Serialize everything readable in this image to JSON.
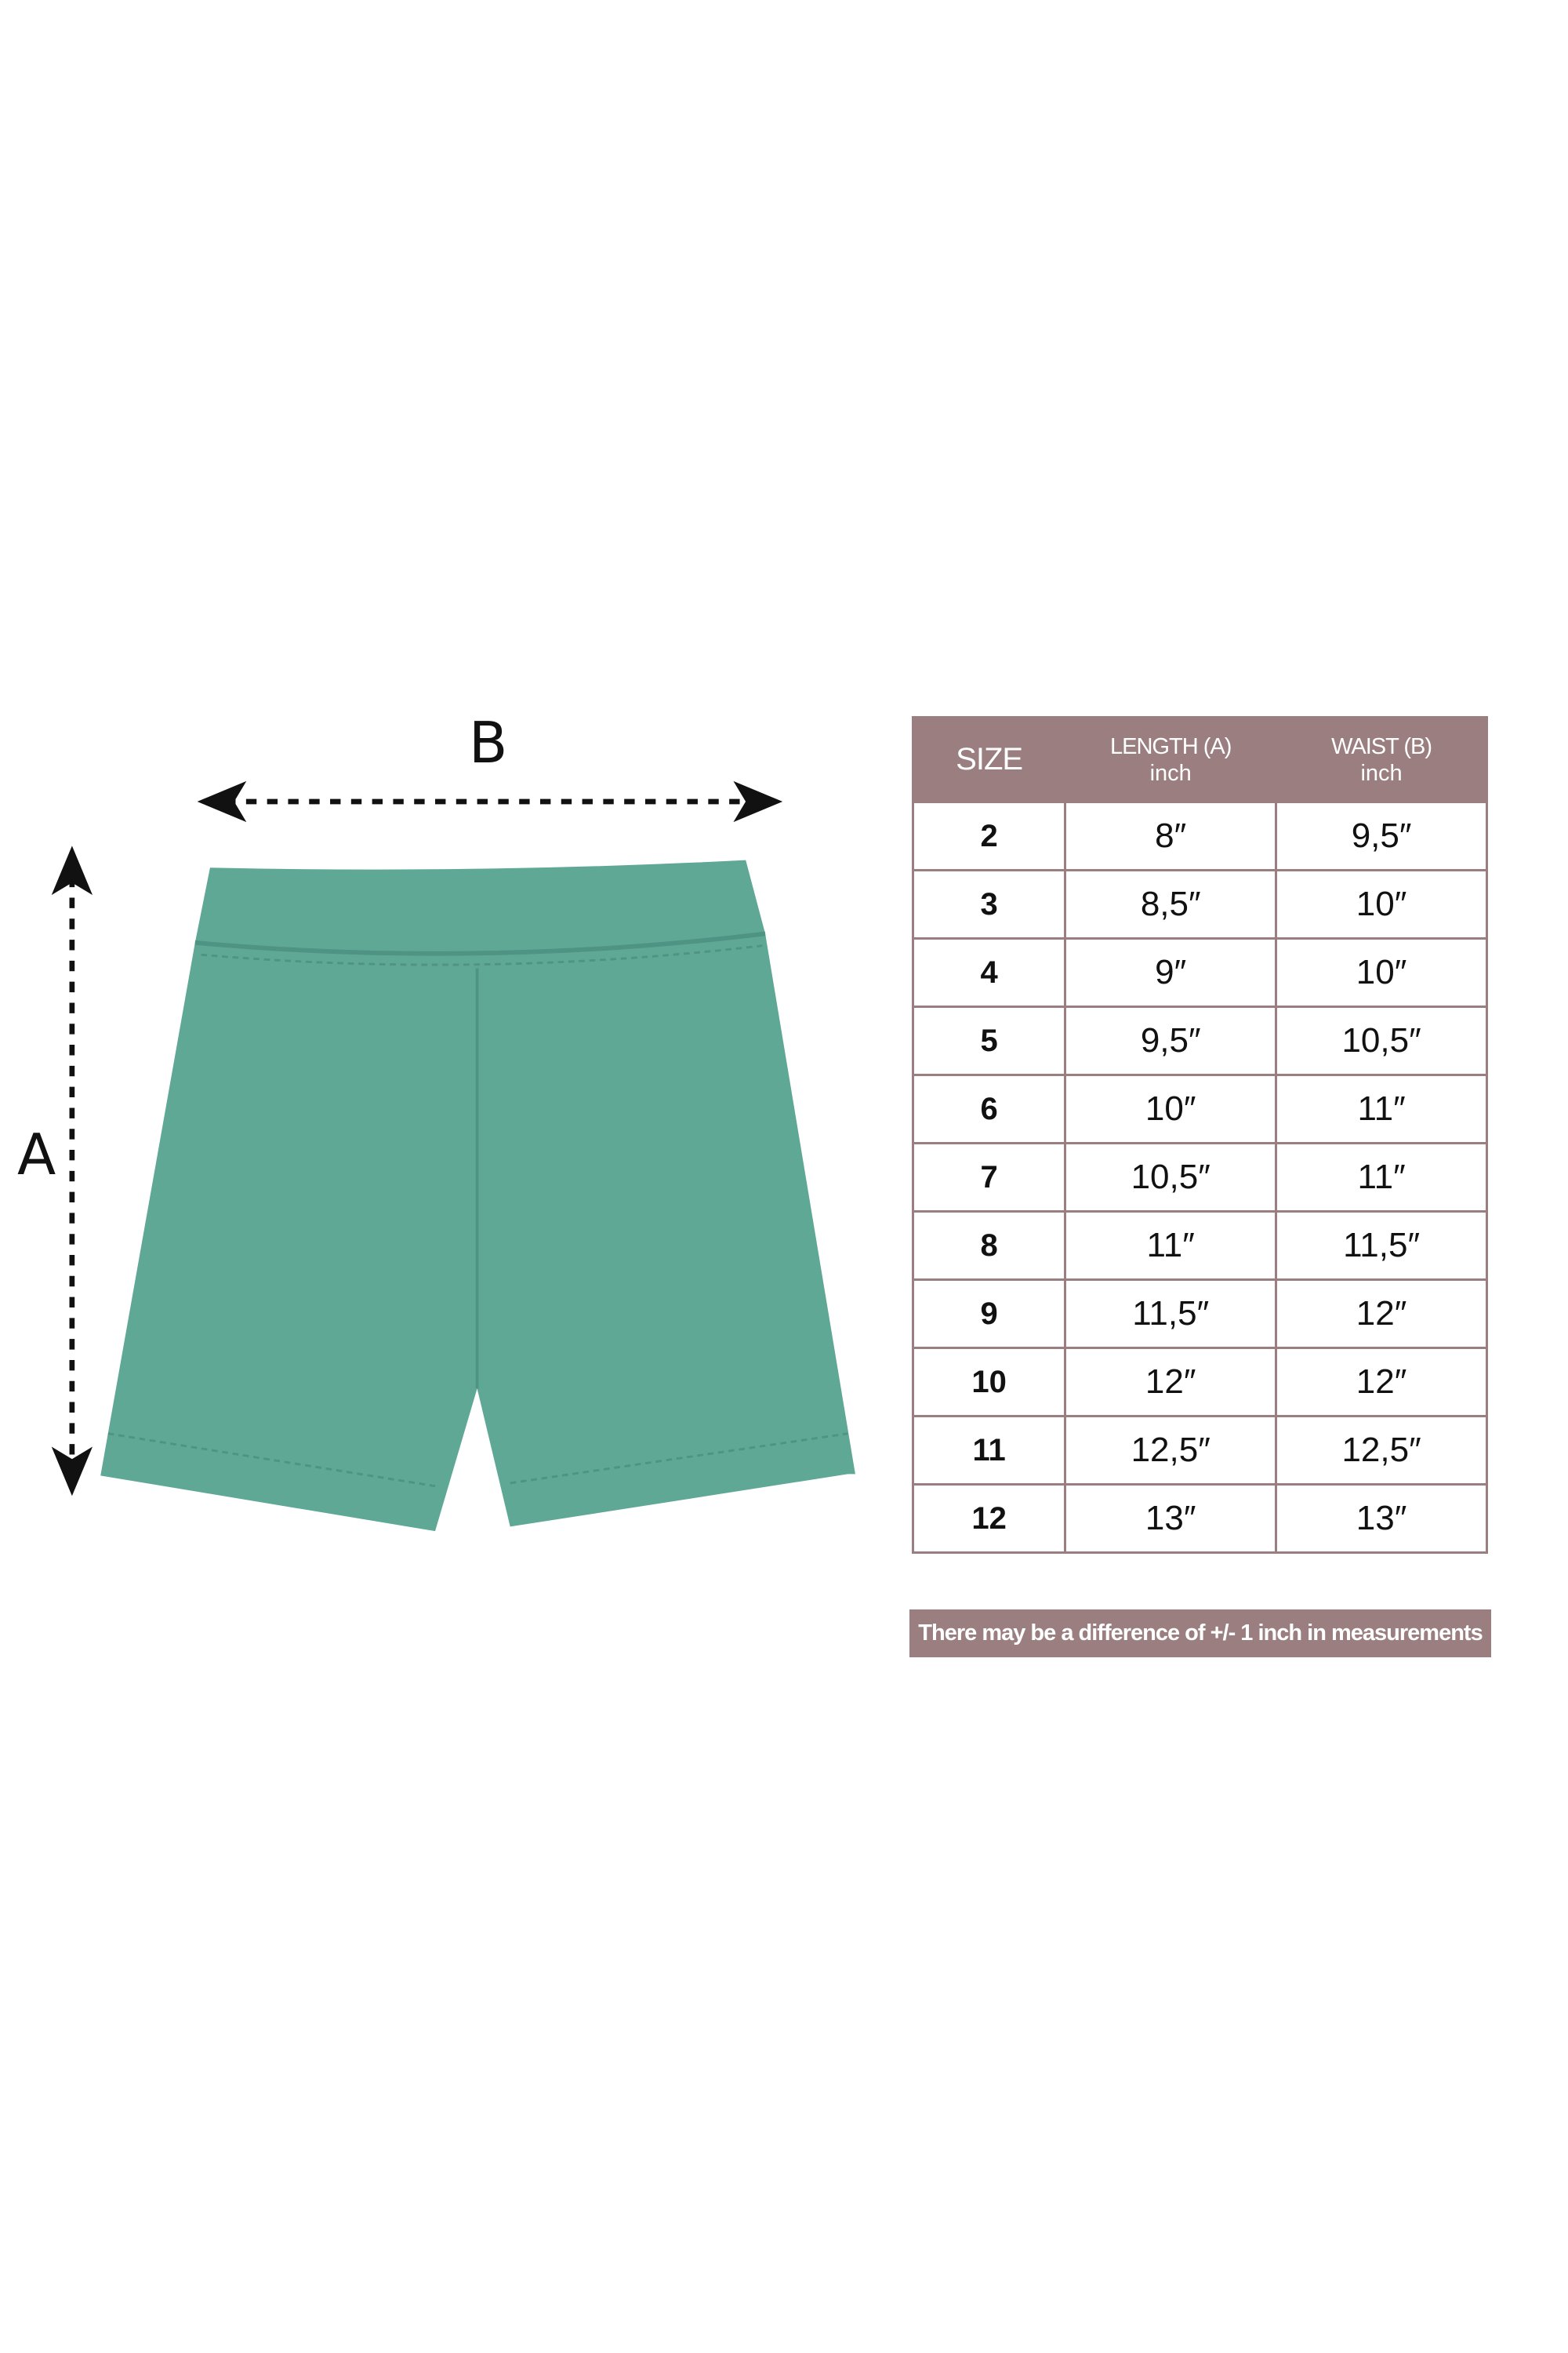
{
  "diagram": {
    "label_a": "A",
    "label_b": "B",
    "garment_color": "#5fa896"
  },
  "table": {
    "header": {
      "size": "SIZE",
      "length": "LENGTH (A)",
      "length_unit": "inch",
      "waist": "WAIST (B)",
      "waist_unit": "inch"
    },
    "rows": [
      {
        "size": "2",
        "length": "8″",
        "waist": "9,5″"
      },
      {
        "size": "3",
        "length": "8,5″",
        "waist": "10″"
      },
      {
        "size": "4",
        "length": "9″",
        "waist": "10″"
      },
      {
        "size": "5",
        "length": "9,5″",
        "waist": "10,5″"
      },
      {
        "size": "6",
        "length": "10″",
        "waist": "11″"
      },
      {
        "size": "7",
        "length": "10,5″",
        "waist": "11″"
      },
      {
        "size": "8",
        "length": "11″",
        "waist": "11,5″"
      },
      {
        "size": "9",
        "length": "11,5″",
        "waist": "12″"
      },
      {
        "size": "10",
        "length": "12″",
        "waist": "12″"
      },
      {
        "size": "11",
        "length": "12,5″",
        "waist": "12,5″"
      },
      {
        "size": "12",
        "length": "13″",
        "waist": "13″"
      }
    ],
    "header_color": "#9b7f80"
  },
  "note": "There may be a difference of +/- 1 inch in measurements"
}
